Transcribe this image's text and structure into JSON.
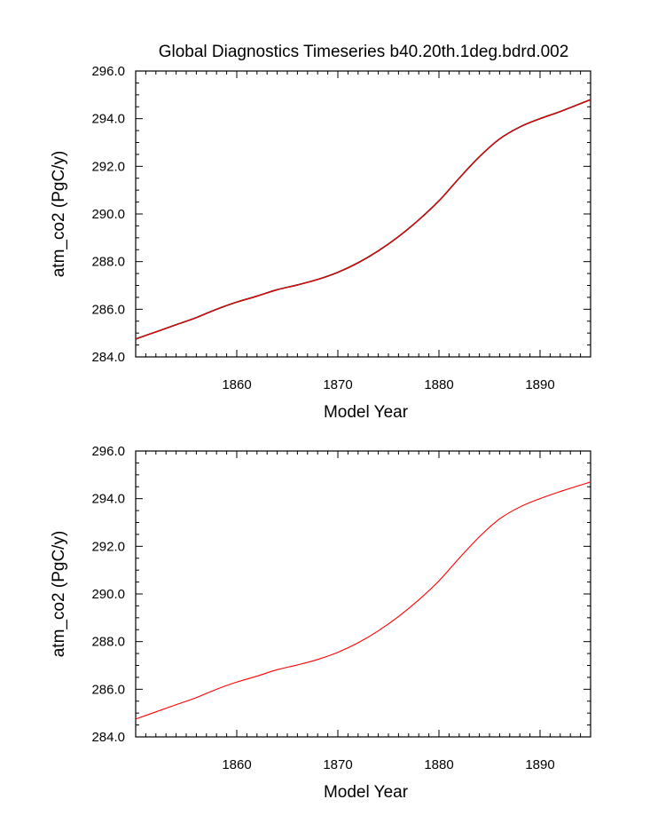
{
  "figure_title": "Global Diagnostics Timeseries b40.20th.1deg.bdrd.002",
  "chart_data": [
    {
      "type": "line",
      "panel": "top",
      "xlabel": "Model Year",
      "ylabel": "atm_co2 (PgC/y)",
      "xlim": [
        1850,
        1895
      ],
      "ylim": [
        284,
        296
      ],
      "xticks": [
        1860,
        1870,
        1880,
        1890
      ],
      "xtick_labels": [
        "1860",
        "1870",
        "1880",
        "1890"
      ],
      "yticks": [
        284,
        286,
        288,
        290,
        292,
        294,
        296
      ],
      "ytick_labels": [
        "284.0",
        "286.0",
        "288.0",
        "290.0",
        "292.0",
        "294.0",
        "296.0"
      ],
      "series": [
        {
          "name": "series-black",
          "color": "#000000",
          "x": [
            1850,
            1852,
            1854,
            1856,
            1858,
            1860,
            1862,
            1864,
            1866,
            1868,
            1870,
            1872,
            1874,
            1876,
            1878,
            1880,
            1882,
            1884,
            1886,
            1888,
            1890,
            1892,
            1895
          ],
          "values": [
            284.75,
            285.05,
            285.35,
            285.65,
            286.0,
            286.3,
            286.55,
            286.82,
            287.02,
            287.25,
            287.55,
            287.95,
            288.45,
            289.05,
            289.75,
            290.55,
            291.5,
            292.4,
            293.15,
            293.65,
            294.0,
            294.3,
            294.8
          ]
        },
        {
          "name": "series-red",
          "color": "#ff0000",
          "x": [
            1850,
            1852,
            1854,
            1856,
            1858,
            1860,
            1862,
            1864,
            1866,
            1868,
            1870,
            1872,
            1874,
            1876,
            1878,
            1880,
            1882,
            1884,
            1886,
            1888,
            1890,
            1892,
            1895
          ],
          "values": [
            284.75,
            285.05,
            285.35,
            285.65,
            286.0,
            286.3,
            286.55,
            286.82,
            287.02,
            287.25,
            287.55,
            287.95,
            288.45,
            289.05,
            289.75,
            290.55,
            291.5,
            292.4,
            293.15,
            293.65,
            294.0,
            294.3,
            294.8
          ]
        }
      ]
    },
    {
      "type": "line",
      "panel": "bottom",
      "xlabel": "Model Year",
      "ylabel": "atm_co2 (PgC/y)",
      "xlim": [
        1850,
        1895
      ],
      "ylim": [
        284,
        296
      ],
      "xticks": [
        1860,
        1870,
        1880,
        1890
      ],
      "xtick_labels": [
        "1860",
        "1870",
        "1880",
        "1890"
      ],
      "yticks": [
        284,
        286,
        288,
        290,
        292,
        294,
        296
      ],
      "ytick_labels": [
        "284.0",
        "286.0",
        "288.0",
        "290.0",
        "292.0",
        "294.0",
        "296.0"
      ],
      "series": [
        {
          "name": "series-red",
          "color": "#ff0000",
          "x": [
            1850,
            1852,
            1854,
            1856,
            1858,
            1860,
            1862,
            1864,
            1866,
            1868,
            1870,
            1872,
            1874,
            1876,
            1878,
            1880,
            1882,
            1884,
            1886,
            1888,
            1890,
            1892,
            1895
          ],
          "values": [
            284.75,
            285.05,
            285.35,
            285.65,
            286.0,
            286.3,
            286.55,
            286.82,
            287.02,
            287.25,
            287.55,
            287.95,
            288.45,
            289.05,
            289.75,
            290.55,
            291.5,
            292.4,
            293.15,
            293.65,
            294.0,
            294.3,
            294.7
          ]
        }
      ]
    }
  ]
}
